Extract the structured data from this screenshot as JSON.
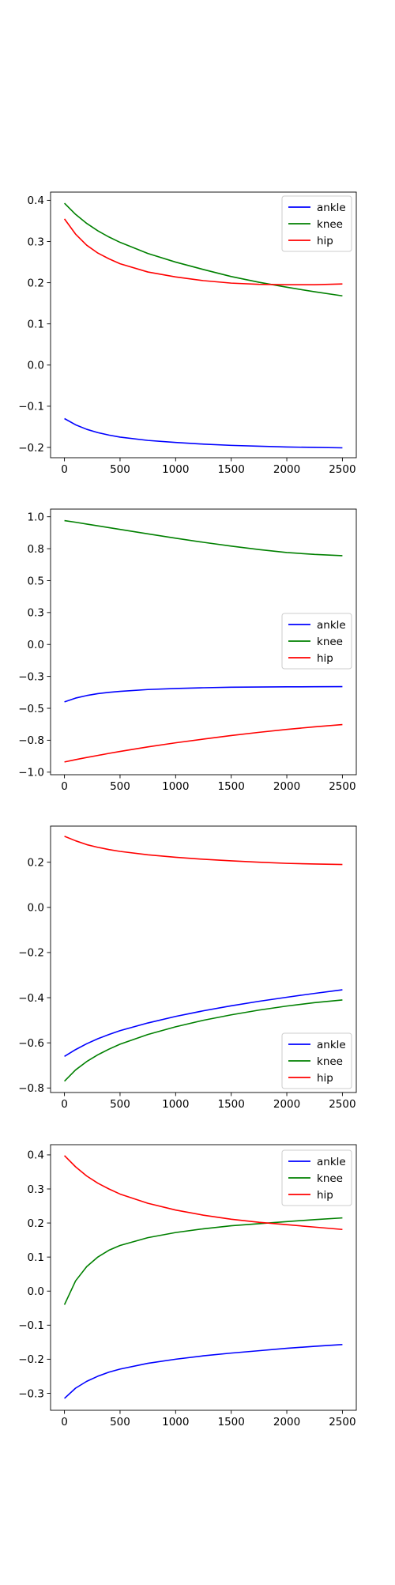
{
  "chart_data": [
    {
      "type": "line",
      "legend_position": "top-right",
      "grid": false,
      "xlim": [
        -125,
        2625
      ],
      "ylim": [
        -0.225,
        0.42
      ],
      "xticks": [
        0,
        500,
        1000,
        1500,
        2000,
        2500
      ],
      "yticks": [
        -0.2,
        -0.1,
        0.0,
        0.1,
        0.2,
        0.3,
        0.4
      ],
      "x": [
        0,
        100,
        200,
        300,
        400,
        500,
        750,
        1000,
        1250,
        1500,
        1750,
        2000,
        2250,
        2500
      ],
      "series": [
        {
          "name": "ankle",
          "color": "#0000ff",
          "values": [
            -0.13,
            -0.145,
            -0.156,
            -0.164,
            -0.17,
            -0.175,
            -0.183,
            -0.188,
            -0.192,
            -0.195,
            -0.197,
            -0.199,
            -0.2,
            -0.201
          ]
        },
        {
          "name": "knee",
          "color": "#008000",
          "values": [
            0.393,
            0.366,
            0.344,
            0.326,
            0.311,
            0.298,
            0.271,
            0.25,
            0.232,
            0.215,
            0.201,
            0.189,
            0.178,
            0.168
          ]
        },
        {
          "name": "hip",
          "color": "#ff0000",
          "values": [
            0.355,
            0.318,
            0.291,
            0.272,
            0.258,
            0.246,
            0.226,
            0.214,
            0.205,
            0.199,
            0.196,
            0.195,
            0.195,
            0.197
          ]
        }
      ]
    },
    {
      "type": "line",
      "legend_position": "center-right",
      "grid": false,
      "xlim": [
        -125,
        2625
      ],
      "ylim": [
        -1.02,
        1.06
      ],
      "xticks": [
        0,
        500,
        1000,
        1500,
        2000,
        2500
      ],
      "yticks": [
        -1.0,
        -0.75,
        -0.5,
        -0.25,
        0.0,
        0.25,
        0.5,
        0.75,
        1.0
      ],
      "x": [
        0,
        100,
        200,
        300,
        400,
        500,
        750,
        1000,
        1250,
        1500,
        1750,
        2000,
        2250,
        2500
      ],
      "series": [
        {
          "name": "ankle",
          "color": "#0000ff",
          "values": [
            -0.45,
            -0.42,
            -0.4,
            -0.385,
            -0.375,
            -0.367,
            -0.353,
            -0.345,
            -0.339,
            -0.335,
            -0.333,
            -0.332,
            -0.331,
            -0.33
          ]
        },
        {
          "name": "knee",
          "color": "#008000",
          "values": [
            0.97,
            0.957,
            0.943,
            0.929,
            0.915,
            0.901,
            0.866,
            0.832,
            0.8,
            0.77,
            0.743,
            0.72,
            0.705,
            0.695
          ]
        },
        {
          "name": "hip",
          "color": "#ff0000",
          "values": [
            -0.92,
            -0.902,
            -0.885,
            -0.869,
            -0.853,
            -0.838,
            -0.802,
            -0.77,
            -0.741,
            -0.713,
            -0.688,
            -0.665,
            -0.645,
            -0.627
          ]
        }
      ]
    },
    {
      "type": "line",
      "legend_position": "bottom-right",
      "grid": false,
      "xlim": [
        -125,
        2625
      ],
      "ylim": [
        -0.82,
        0.36
      ],
      "xticks": [
        0,
        500,
        1000,
        1500,
        2000,
        2500
      ],
      "yticks": [
        -0.8,
        -0.6,
        -0.4,
        -0.2,
        0.0,
        0.2
      ],
      "x": [
        0,
        100,
        200,
        300,
        400,
        500,
        750,
        1000,
        1250,
        1500,
        1750,
        2000,
        2250,
        2500
      ],
      "series": [
        {
          "name": "ankle",
          "color": "#0000ff",
          "values": [
            -0.66,
            -0.63,
            -0.604,
            -0.582,
            -0.563,
            -0.546,
            -0.512,
            -0.483,
            -0.458,
            -0.436,
            -0.416,
            -0.398,
            -0.381,
            -0.365
          ]
        },
        {
          "name": "knee",
          "color": "#008000",
          "values": [
            -0.77,
            -0.72,
            -0.683,
            -0.653,
            -0.628,
            -0.606,
            -0.563,
            -0.529,
            -0.5,
            -0.476,
            -0.455,
            -0.437,
            -0.422,
            -0.41
          ]
        },
        {
          "name": "hip",
          "color": "#ff0000",
          "values": [
            0.315,
            0.295,
            0.278,
            0.266,
            0.256,
            0.248,
            0.233,
            0.222,
            0.213,
            0.206,
            0.2,
            0.195,
            0.192,
            0.19
          ]
        }
      ]
    },
    {
      "type": "line",
      "legend_position": "top-right",
      "grid": false,
      "xlim": [
        -125,
        2625
      ],
      "ylim": [
        -0.35,
        0.43
      ],
      "xticks": [
        0,
        500,
        1000,
        1500,
        2000,
        2500
      ],
      "yticks": [
        -0.3,
        -0.2,
        -0.1,
        0.0,
        0.1,
        0.2,
        0.3,
        0.4
      ],
      "x": [
        0,
        100,
        200,
        300,
        400,
        500,
        750,
        1000,
        1250,
        1500,
        1750,
        2000,
        2250,
        2500
      ],
      "series": [
        {
          "name": "ankle",
          "color": "#0000ff",
          "values": [
            -0.315,
            -0.285,
            -0.265,
            -0.25,
            -0.238,
            -0.229,
            -0.212,
            -0.2,
            -0.19,
            -0.182,
            -0.175,
            -0.168,
            -0.162,
            -0.157
          ]
        },
        {
          "name": "knee",
          "color": "#008000",
          "values": [
            -0.04,
            0.03,
            0.072,
            0.1,
            0.12,
            0.134,
            0.157,
            0.172,
            0.183,
            0.192,
            0.198,
            0.204,
            0.21,
            0.215
          ]
        },
        {
          "name": "hip",
          "color": "#ff0000",
          "values": [
            0.398,
            0.365,
            0.338,
            0.317,
            0.3,
            0.285,
            0.258,
            0.238,
            0.223,
            0.211,
            0.202,
            0.195,
            0.188,
            0.181
          ]
        }
      ]
    }
  ]
}
